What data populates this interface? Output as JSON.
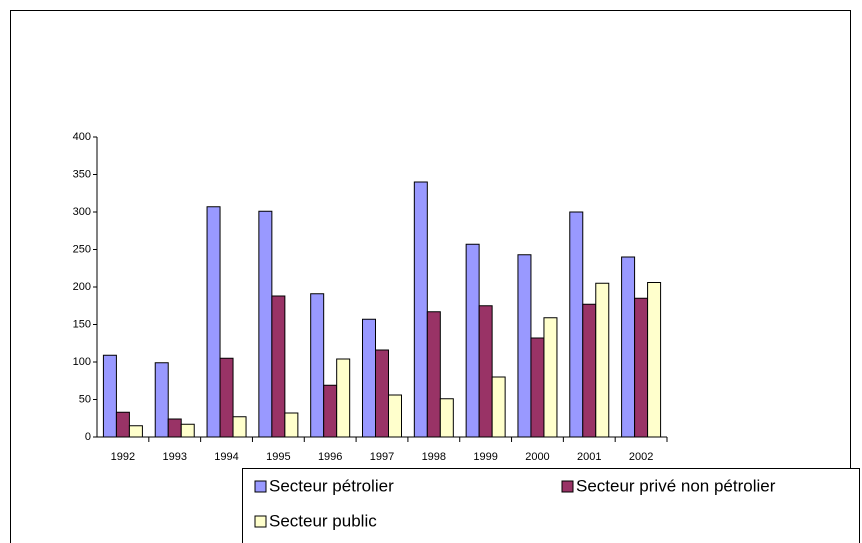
{
  "chart_data": {
    "type": "bar",
    "categories": [
      "1992",
      "1993",
      "1994",
      "1995",
      "1996",
      "1997",
      "1998",
      "1999",
      "2000",
      "2001",
      "2002"
    ],
    "series": [
      {
        "name": "Secteur pétrolier",
        "color": "#9999ff",
        "values": [
          109,
          99,
          307,
          301,
          191,
          157,
          340,
          257,
          243,
          300,
          240
        ]
      },
      {
        "name": "Secteur privé non pétrolier",
        "color": "#993366",
        "values": [
          33,
          24,
          105,
          188,
          69,
          116,
          167,
          175,
          132,
          177,
          185
        ]
      },
      {
        "name": "Secteur public",
        "color": "#ffffcc",
        "values": [
          15,
          17,
          27,
          32,
          104,
          56,
          51,
          80,
          159,
          205,
          206
        ]
      }
    ],
    "ylim": [
      0,
      400
    ],
    "yticks": [
      0,
      50,
      100,
      150,
      200,
      250,
      300,
      350,
      400
    ],
    "grid": false
  }
}
